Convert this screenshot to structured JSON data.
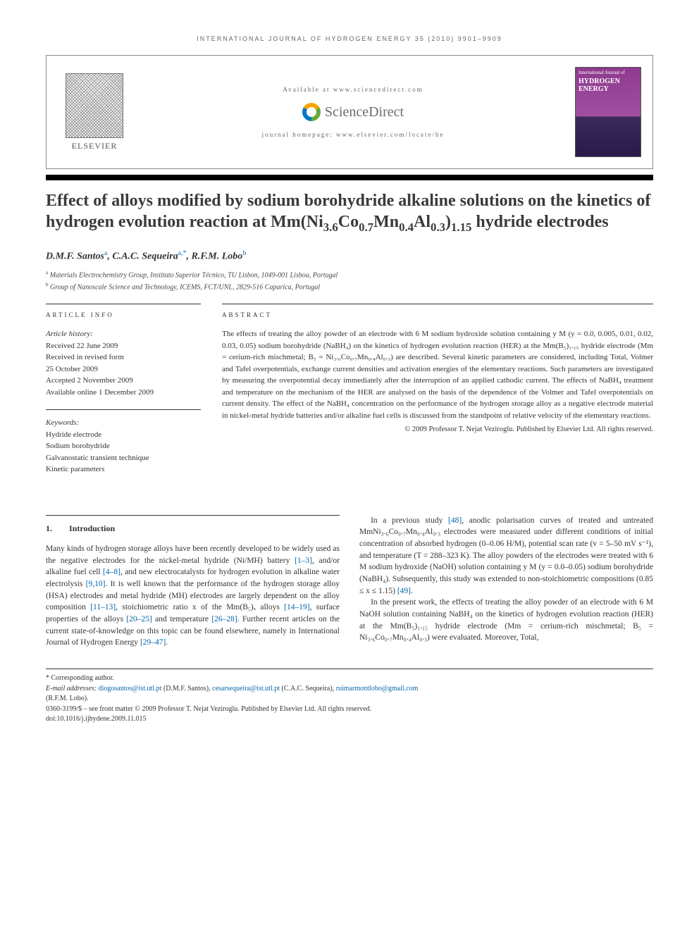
{
  "running_head": "INTERNATIONAL JOURNAL OF HYDROGEN ENERGY 35 (2010) 9901–9909",
  "header": {
    "publisher": "ELSEVIER",
    "available_at": "Available at www.sciencedirect.com",
    "sd_brand": "ScienceDirect",
    "homepage": "journal homepage: www.elsevier.com/locate/he",
    "cover_small": "International Journal of",
    "cover_big": "HYDROGEN ENERGY"
  },
  "title_parts": {
    "pre": "Effect of alloys modified by sodium borohydride alkaline solutions on the kinetics of hydrogen evolution reaction at Mm(Ni",
    "sub1": "3.6",
    "mid1": "Co",
    "sub2": "0.7",
    "mid2": "Mn",
    "sub3": "0.4",
    "mid3": "Al",
    "sub4": "0.3",
    "mid4": ")",
    "sub5": "1.15",
    "post": " hydride electrodes"
  },
  "authors_html": "D.M.F. Santos<sup>a</sup>, C.A.C. Sequeira<sup>a,*</sup>, R.F.M. Lobo<sup>b</sup>",
  "affiliations": [
    {
      "sup": "a",
      "text": "Materials Electrochemistry Group, Instituto Superior Técnico, TU Lisbon, 1049-001 Lisboa, Portugal"
    },
    {
      "sup": "b",
      "text": "Group of Nanoscale Science and Technology, ICEMS, FCT/UNL, 2829-516 Caparica, Portugal"
    }
  ],
  "article_info": {
    "heading": "ARTICLE INFO",
    "history_label": "Article history:",
    "history": [
      "Received 22 June 2009",
      "Received in revised form",
      "25 October 2009",
      "Accepted 2 November 2009",
      "Available online 1 December 2009"
    ],
    "keywords_label": "Keywords:",
    "keywords": [
      "Hydride electrode",
      "Sodium borohydride",
      "Galvanostatic transient technique",
      "Kinetic parameters"
    ]
  },
  "abstract": {
    "heading": "ABSTRACT",
    "text": "The effects of treating the alloy powder of an electrode with 6 M sodium hydroxide solution containing y M (y = 0.0, 0.005, 0.01, 0.02, 0.03, 0.05) sodium borohydride (NaBH₄) on the kinetics of hydrogen evolution reaction (HER) at the Mm(B₅)₁.₁₅ hydride electrode (Mm = cerium-rich mischmetal; B₅ = Ni₃.₆Co₀.₇Mn₀.₄Al₀.₃) are described. Several kinetic parameters are considered, including Total, Volmer and Tafel overpotentials, exchange current densities and activation energies of the elementary reactions. Such parameters are investigated by measuring the overpotential decay immediately after the interruption of an applied cathodic current. The effects of NaBH₄ treatment and temperature on the mechanism of the HER are analysed on the basis of the dependence of the Volmer and Tafel overpotentials on current density. The effect of the NaBH₄ concentration on the performance of the hydrogen storage alloy as a negative electrode material in nickel-metal hydride batteries and/or alkaline fuel cells is discussed from the standpoint of relative velocity of the elementary reactions.",
    "copyright": "© 2009 Professor T. Nejat Veziroglu. Published by Elsevier Ltd. All rights reserved."
  },
  "section1": {
    "num": "1.",
    "title": "Introduction"
  },
  "body": {
    "col1_p1_a": "Many kinds of hydrogen storage alloys have been recently developed to be widely used as the negative electrodes for the nickel-metal hydride (Ni/MH) battery ",
    "ref1": "[1–3]",
    "col1_p1_b": ", and/or alkaline fuel cell ",
    "ref2": "[4–8]",
    "col1_p1_c": ", and new electrocatalysts for hydrogen evolution in alkaline water electrolysis ",
    "ref3": "[9,10]",
    "col1_p1_d": ". It is well known that the performance of the hydrogen storage alloy (HSA) electrodes and metal hydride (MH) electrodes are largely dependent on the alloy composition ",
    "ref4": "[11–13]",
    "col1_p1_e": ", stoichiometric ratio x of the Mm(B₅)ₓ alloys ",
    "ref5": "[14–19]",
    "col1_p1_f": ", surface properties of the alloys ",
    "ref6": "[20–25]",
    "col1_p1_g": " and temperature ",
    "ref7": "[26–28]",
    "col1_p1_h": ". Further recent articles on the current state-of-knowledge on this topic can be found elsewhere, namely in International Journal of Hydrogen Energy ",
    "ref8": "[29–47]",
    "col1_p1_i": ".",
    "col2_p1_a": "In a previous study ",
    "ref9": "[48]",
    "col2_p1_b": ", anodic polarisation curves of treated and untreated MmNi₃.₆Co₀.₇Mn₀.₄Al₀.₃ electrodes were measured under different conditions of initial concentration of absorbed hydrogen (0–0.06 H/M), potential scan rate (v = 5–50 mV s⁻¹), and temperature (T = 288–323 K). The alloy powders of the electrodes were treated with 6 M sodium hydroxide (NaOH) solution containing y M (y = 0.0–0.05) sodium borohydride (NaBH₄). Subsequently, this study was extended to non-stoichiometric compositions (0.85 ≤ x ≤ 1.15) ",
    "ref10": "[49]",
    "col2_p1_c": ".",
    "col2_p2": "In the present work, the effects of treating the alloy powder of an electrode with 6 M NaOH solution containing NaBH₄ on the kinetics of hydrogen evolution reaction (HER) at the Mm(B₅)₁.₁₅ hydride electrode (Mm = cerium-rich mischmetal; B₅ = Ni₃.₆Co₀.₇Mn₀.₄Al₀.₃) were evaluated. Moreover, Total,"
  },
  "footer": {
    "corr": "* Corresponding author.",
    "email_label": "E-mail addresses: ",
    "email1": "diogosantos@ist.utl.pt",
    "name1": " (D.M.F. Santos), ",
    "email2": "cesarsequeira@ist.utl.pt",
    "name2": " (C.A.C. Sequeira), ",
    "email3": "ruimarmontlobo@gmail.com",
    "name3": "(R.F.M. Lobo).",
    "front_matter": "0360-3199/$ – see front matter © 2009 Professor T. Nejat Veziroglu. Published by Elsevier Ltd. All rights reserved.",
    "doi": "doi:10.1016/j.ijhydene.2009.11.015"
  }
}
